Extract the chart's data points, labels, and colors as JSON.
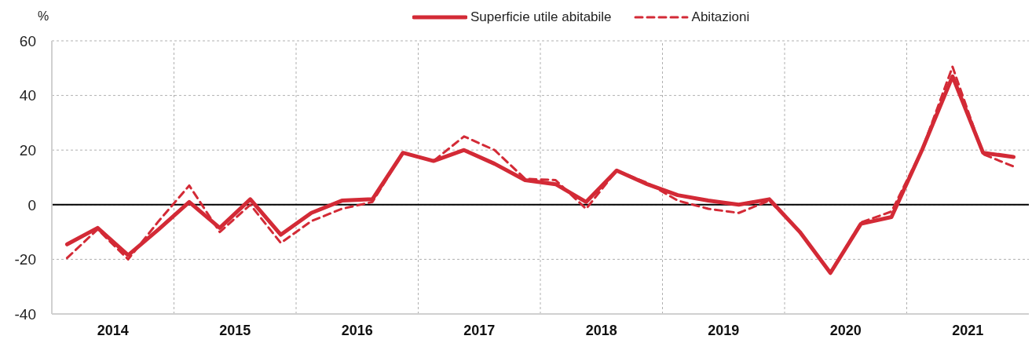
{
  "chart_data": {
    "type": "line",
    "ylabel": "%",
    "x": [
      2014.125,
      2014.375,
      2014.625,
      2014.875,
      2015.125,
      2015.375,
      2015.625,
      2015.875,
      2016.125,
      2016.375,
      2016.625,
      2016.875,
      2017.125,
      2017.375,
      2017.625,
      2017.875,
      2018.125,
      2018.375,
      2018.625,
      2018.875,
      2019.125,
      2019.375,
      2019.625,
      2019.875,
      2020.125,
      2020.375,
      2020.625,
      2020.875,
      2021.125,
      2021.375,
      2021.625,
      2021.875
    ],
    "series": [
      {
        "name": "Superficie utile abitabile",
        "color": "#d32a36",
        "line_style": "solid",
        "values": [
          -14.5,
          -8.5,
          -18.5,
          -9,
          1,
          -8.5,
          2,
          -11,
          -3,
          1.5,
          2,
          19,
          16,
          20,
          15,
          9,
          7.5,
          1,
          12.5,
          7.5,
          3.5,
          1.5,
          0,
          2,
          -10,
          -25,
          -7,
          -4.5,
          20,
          47,
          19,
          17.5
        ]
      },
      {
        "name": "Abitazioni",
        "color": "#d32a36",
        "line_style": "dashed",
        "values": [
          -19.5,
          -9,
          -20,
          -6,
          7,
          -10,
          0,
          -14,
          -6,
          -1.5,
          1,
          19,
          16,
          25,
          20,
          9.5,
          9,
          -1.5,
          12.5,
          8,
          1.5,
          -1.5,
          -3,
          1.5,
          -10,
          -25,
          -6.5,
          -2.5,
          20,
          50.5,
          18.5,
          14
        ]
      }
    ],
    "xlim": [
      2014,
      2022
    ],
    "xticks": [
      {
        "value": 2014.5,
        "label": "2014"
      },
      {
        "value": 2015,
        "label": null
      },
      {
        "value": 2015.5,
        "label": "2015"
      },
      {
        "value": 2016,
        "label": null
      },
      {
        "value": 2016.5,
        "label": "2016"
      },
      {
        "value": 2017,
        "label": null
      },
      {
        "value": 2017.5,
        "label": "2017"
      },
      {
        "value": 2018,
        "label": null
      },
      {
        "value": 2018.5,
        "label": "2018"
      },
      {
        "value": 2019,
        "label": null
      },
      {
        "value": 2019.5,
        "label": "2019"
      },
      {
        "value": 2020,
        "label": null
      },
      {
        "value": 2020.5,
        "label": "2020"
      },
      {
        "value": 2021,
        "label": null
      },
      {
        "value": 2021.5,
        "label": "2021"
      }
    ],
    "ylim": [
      -40,
      60
    ],
    "yticks": [
      -40,
      -20,
      0,
      20,
      40,
      60
    ],
    "ref_lines": [
      {
        "axis": "y",
        "value": 0,
        "color": "#000000"
      }
    ],
    "grid": true,
    "legend": "top"
  }
}
